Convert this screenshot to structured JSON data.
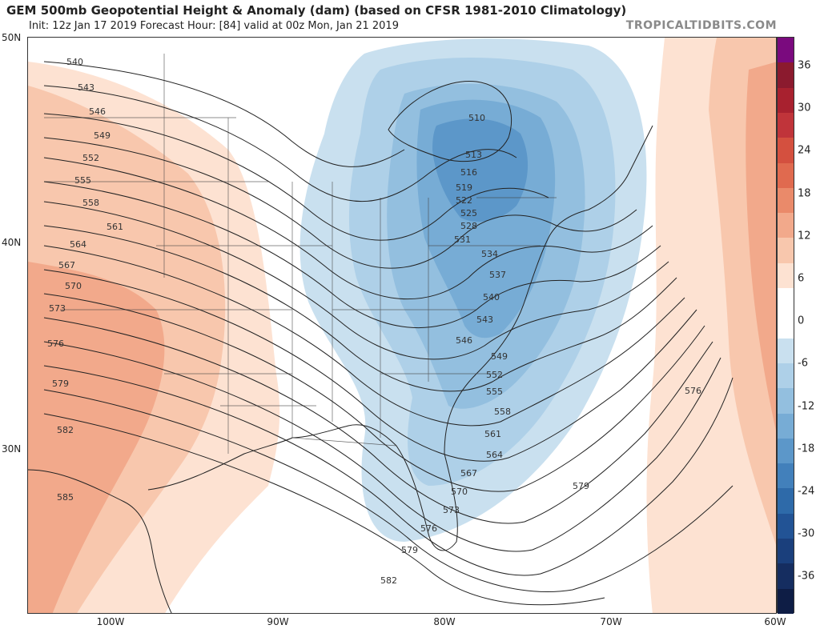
{
  "header": {
    "title": "GEM 500mb Geopotential Height & Anomaly (dam) (based on CFSR 1981-2010 Climatology)",
    "subtitle": "Init: 12z Jan 17 2019   Forecast Hour: [84]   valid at 00z Mon, Jan 21 2019",
    "brand": "TROPICALTIDBITS.COM"
  },
  "map": {
    "lat_labels": [
      "50N",
      "40N",
      "30N"
    ],
    "lon_labels": [
      "100W",
      "90W",
      "80W",
      "70W",
      "60W"
    ],
    "contour_labels": [
      "540",
      "543",
      "546",
      "549",
      "552",
      "555",
      "558",
      "561",
      "564",
      "567",
      "570",
      "573",
      "576",
      "579",
      "582",
      "585",
      "510",
      "513",
      "516",
      "519",
      "522",
      "525",
      "528",
      "531",
      "534",
      "537",
      "540",
      "543",
      "546",
      "549",
      "552",
      "555",
      "558",
      "561",
      "564",
      "567",
      "570",
      "573",
      "576",
      "579",
      "582",
      "579",
      "576"
    ]
  },
  "colorbar": {
    "ticks": [
      "36",
      "30",
      "24",
      "18",
      "12",
      "6",
      "0",
      "-6",
      "-12",
      "-18",
      "-24",
      "-30",
      "-36"
    ],
    "colors": [
      "#7a0a7e",
      "#8b1a2e",
      "#a8212f",
      "#c0343a",
      "#d4503f",
      "#e06a4f",
      "#ea8a6a",
      "#f2a98b",
      "#f8c7ad",
      "#fde2d2",
      "#ffffff",
      "#ffffff",
      "#c9e0ef",
      "#aed0e8",
      "#93bfdf",
      "#77acd5",
      "#5c97c9",
      "#4280bb",
      "#2e6aa9",
      "#225395",
      "#1a3f7c",
      "#152d60",
      "#0e1d45"
    ]
  }
}
